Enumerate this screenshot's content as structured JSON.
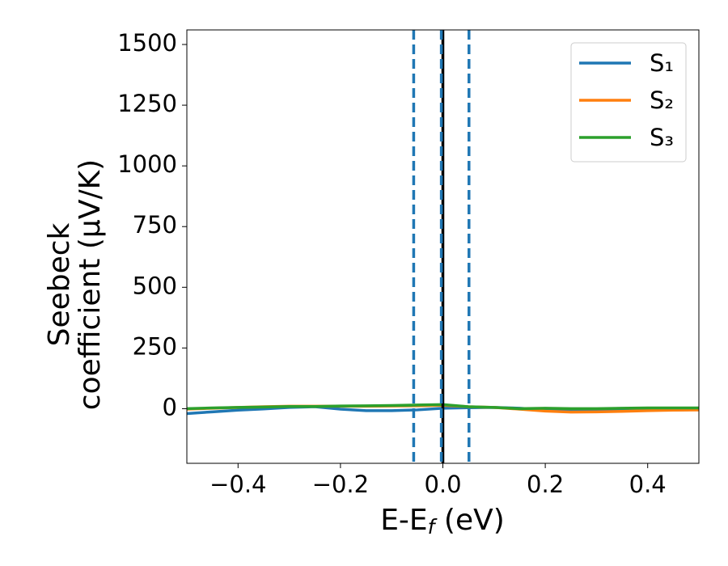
{
  "chart_data": {
    "type": "line",
    "ylabel": [
      "Seebeck",
      "coefficient  (μV/K)"
    ],
    "xlabel": {
      "main": "E-E",
      "sub": "f",
      "rest": " (eV)"
    },
    "x": [
      -0.5,
      -0.45,
      -0.4,
      -0.35,
      -0.3,
      -0.25,
      -0.2,
      -0.15,
      -0.1,
      -0.05,
      0,
      0.05,
      0.1,
      0.15,
      0.2,
      0.25,
      0.3,
      0.35,
      0.4,
      0.45,
      0.5
    ],
    "series": [
      {
        "name": "S₁",
        "color": "#1f77b4",
        "values": [
          -20,
          -13,
          -6,
          -1,
          5,
          8,
          -2,
          -8,
          -8,
          -5,
          2,
          4,
          5,
          2,
          -5,
          -10,
          -10,
          -8,
          -6,
          -5,
          -4
        ]
      },
      {
        "name": "S₂",
        "color": "#ff7f0e",
        "values": [
          -2,
          2,
          5,
          8,
          10,
          10,
          10,
          10,
          11,
          12,
          14,
          8,
          5,
          -2,
          -10,
          -14,
          -13,
          -11,
          -8,
          -6,
          -5
        ]
      },
      {
        "name": "S₃",
        "color": "#2ca02c",
        "values": [
          0,
          3,
          5,
          7,
          9,
          9,
          11,
          12,
          13,
          15,
          17,
          8,
          5,
          0,
          2,
          0,
          0,
          2,
          3,
          3,
          3
        ]
      }
    ],
    "vlines": [
      {
        "x": -0.057,
        "color": "#1f77b4",
        "dashed": true
      },
      {
        "x": 0,
        "color": "#000000",
        "dashed": false
      },
      {
        "x": -0.003,
        "color": "#1f77b4",
        "dashed": true
      },
      {
        "x": 0.051,
        "color": "#1f77b4",
        "dashed": true
      }
    ],
    "xlim": [
      -0.5,
      0.5
    ],
    "ylim": [
      -225,
      1560
    ],
    "xticks": [
      {
        "value": -0.4,
        "label": "−0.4"
      },
      {
        "value": -0.2,
        "label": "−0.2"
      },
      {
        "value": 0,
        "label": "0.0"
      },
      {
        "value": 0.2,
        "label": "0.2"
      },
      {
        "value": 0.4,
        "label": "0.4"
      }
    ],
    "yticks": [
      0,
      250,
      500,
      750,
      1000,
      1250,
      1500
    ],
    "legend": "upper-right",
    "grid": false
  }
}
